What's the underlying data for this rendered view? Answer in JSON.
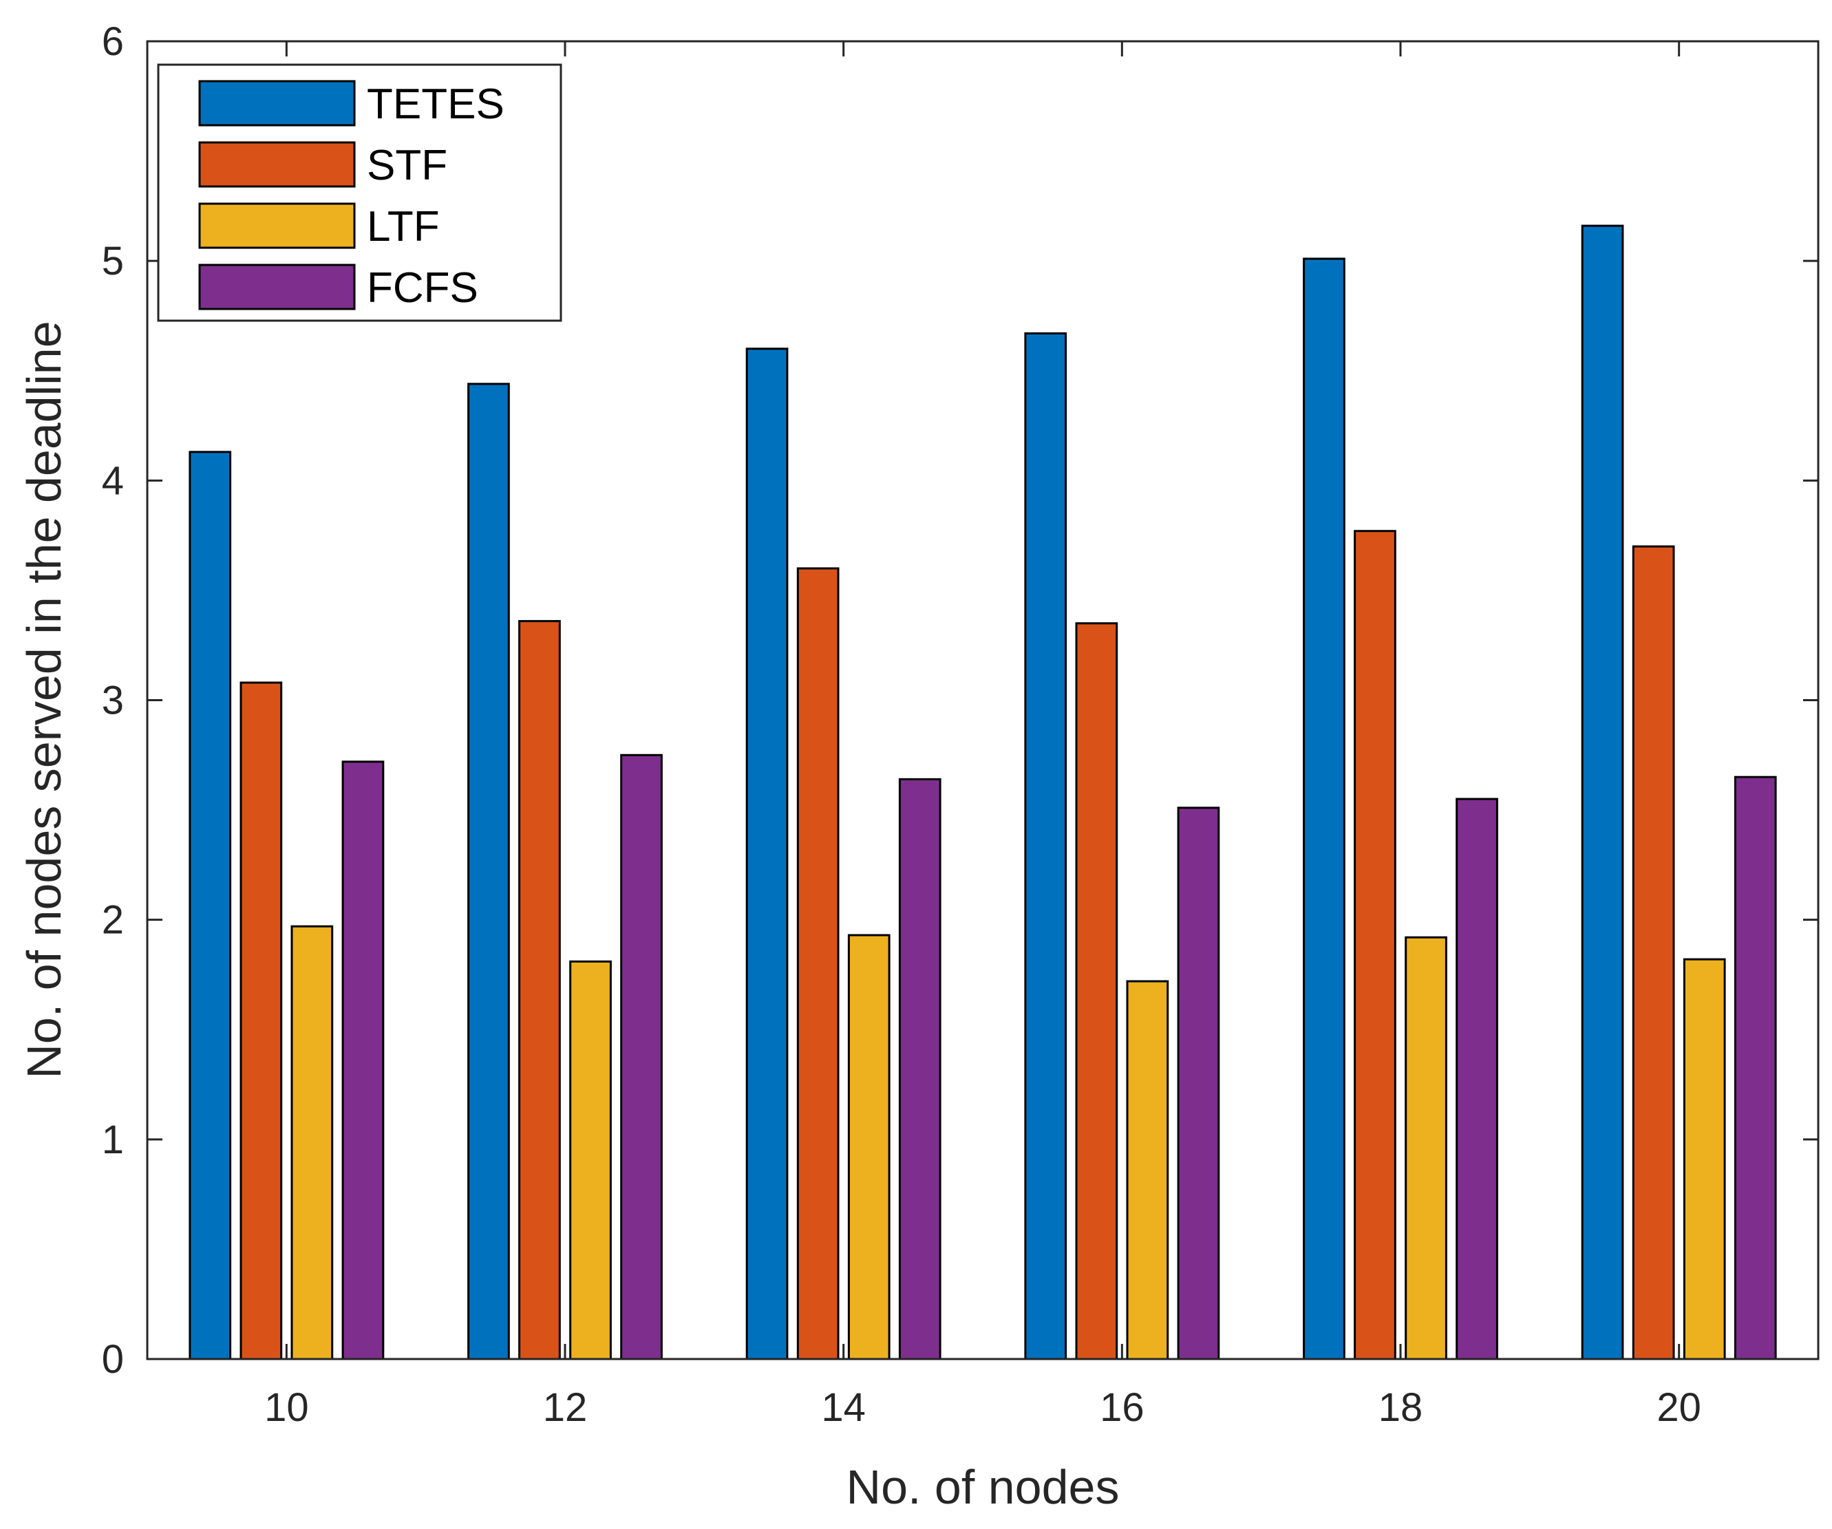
{
  "chart_data": {
    "type": "bar",
    "title": "",
    "xlabel": "No. of nodes",
    "ylabel": "No. of nodes served in the deadline",
    "categories": [
      "10",
      "12",
      "14",
      "16",
      "18",
      "20"
    ],
    "ylim": [
      0,
      6
    ],
    "yticks": [
      "0",
      "1",
      "2",
      "3",
      "4",
      "5",
      "6"
    ],
    "grid": false,
    "legend_position": "top-left",
    "series": [
      {
        "name": "TETES",
        "color": "#0072BD",
        "values": [
          4.13,
          4.44,
          4.6,
          4.67,
          5.01,
          5.16
        ]
      },
      {
        "name": "STF",
        "color": "#D95319",
        "values": [
          3.08,
          3.36,
          3.6,
          3.35,
          3.77,
          3.7
        ]
      },
      {
        "name": "LTF",
        "color": "#EDB120",
        "values": [
          1.97,
          1.81,
          1.93,
          1.72,
          1.92,
          1.82
        ]
      },
      {
        "name": "FCFS",
        "color": "#7E2F8E",
        "values": [
          2.72,
          2.75,
          2.64,
          2.51,
          2.55,
          2.65
        ]
      }
    ]
  }
}
